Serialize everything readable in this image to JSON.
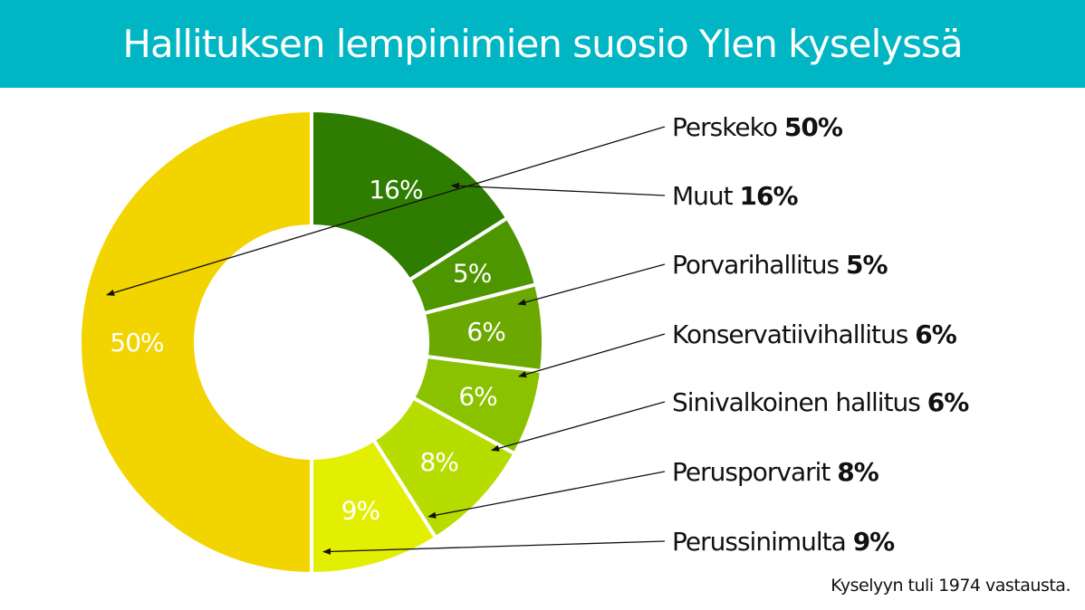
{
  "header": {
    "title": "Hallituksen lempinimien suosio Ylen kyselyssä"
  },
  "footnote": "Kyselyyn tuli 1974 vastausta.",
  "colors": {
    "header_bg": "#00b6c4",
    "slices": [
      "#2f7d00",
      "#4d9600",
      "#6ba900",
      "#8ac200",
      "#b7dc00",
      "#e3ef00",
      "#f2d400"
    ]
  },
  "chart_data": {
    "type": "donut",
    "title": "Hallituksen lempinimien suosio Ylen kyselyssä",
    "unit": "%",
    "categories": [
      "Muut",
      "Porvarihallitus",
      "Konservatiivihallitus",
      "Sinivalkoinen hallitus",
      "Perusporvarit",
      "Perussinimulta",
      "Perskeko"
    ],
    "values": [
      16,
      5,
      6,
      6,
      8,
      9,
      50
    ],
    "slice_labels": [
      "16%",
      "5%",
      "6%",
      "6%",
      "8%",
      "9%",
      "50%"
    ],
    "legend": [
      {
        "name": "Perskeko",
        "value": "50%",
        "slice_index": 6
      },
      {
        "name": "Muut",
        "value": "16%",
        "slice_index": 0
      },
      {
        "name": "Porvarihallitus",
        "value": "5%",
        "slice_index": 1
      },
      {
        "name": "Konservatiivihallitus",
        "value": "6%",
        "slice_index": 2
      },
      {
        "name": "Sinivalkoinen hallitus",
        "value": "6%",
        "slice_index": 3
      },
      {
        "name": "Perusporvarit",
        "value": "8%",
        "slice_index": 4
      },
      {
        "name": "Perussinimulta",
        "value": "9%",
        "slice_index": 5
      }
    ]
  }
}
